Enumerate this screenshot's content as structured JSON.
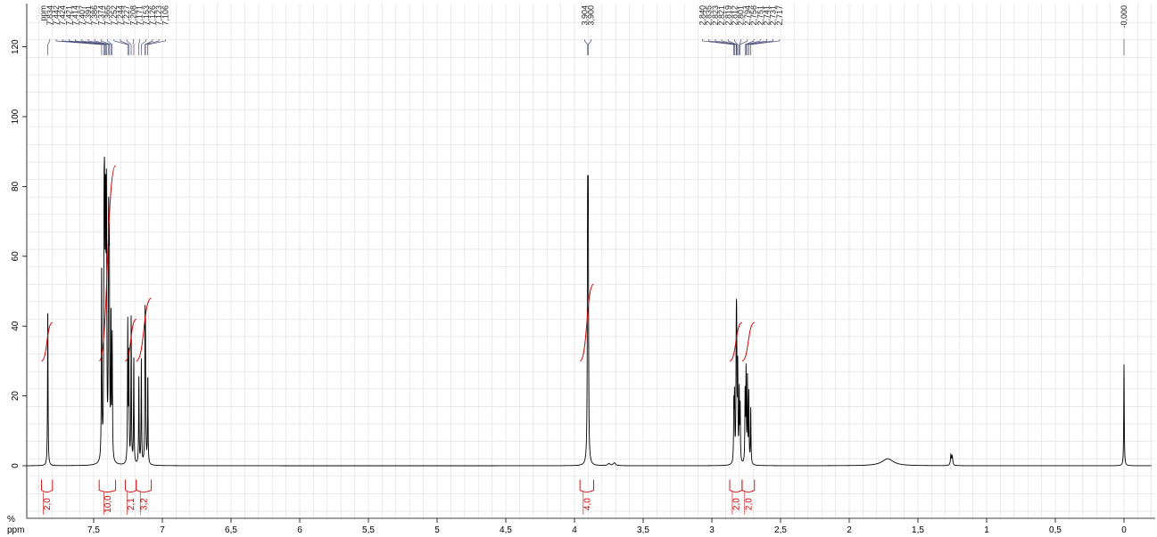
{
  "chart_data": {
    "type": "line",
    "title": "",
    "xlabel": "ppm",
    "ylabel": "%",
    "xlim": [
      8.0,
      -0.2
    ],
    "ylim": [
      -18,
      128
    ],
    "x_ticks": [
      {
        "v": 7.5,
        "label": "7,5"
      },
      {
        "v": 7,
        "label": "7"
      },
      {
        "v": 6.5,
        "label": "6,5"
      },
      {
        "v": 6,
        "label": "6"
      },
      {
        "v": 5.5,
        "label": "5,5"
      },
      {
        "v": 5,
        "label": "5"
      },
      {
        "v": 4.5,
        "label": "4,5"
      },
      {
        "v": 4,
        "label": "4"
      },
      {
        "v": 3.5,
        "label": "3,5"
      },
      {
        "v": 3,
        "label": "3"
      },
      {
        "v": 2.5,
        "label": "2,5"
      },
      {
        "v": 2,
        "label": "2"
      },
      {
        "v": 1.5,
        "label": "1,5"
      },
      {
        "v": 1,
        "label": "1"
      },
      {
        "v": 0.5,
        "label": "0,5"
      },
      {
        "v": 0,
        "label": "0"
      }
    ],
    "y_ticks": [
      {
        "v": 0,
        "label": "0"
      },
      {
        "v": 20,
        "label": "20"
      },
      {
        "v": 40,
        "label": "40"
      },
      {
        "v": 60,
        "label": "60"
      },
      {
        "v": 80,
        "label": "80"
      },
      {
        "v": 100,
        "label": "100"
      },
      {
        "v": 120,
        "label": "120"
      }
    ],
    "grid": true,
    "peaks": [
      {
        "ppm": 7.834,
        "height": 45,
        "label": "7,834"
      },
      {
        "ppm": 7.442,
        "height": 55,
        "label": "7,442"
      },
      {
        "ppm": 7.424,
        "height": 75,
        "label": "7,424"
      },
      {
        "ppm": 7.421,
        "height": 85,
        "label": "7,421"
      },
      {
        "ppm": 7.414,
        "height": 90,
        "label": "7,414"
      },
      {
        "ppm": 7.407,
        "height": 100,
        "label": "7,407"
      },
      {
        "ppm": 7.391,
        "height": 80,
        "label": "7,391"
      },
      {
        "ppm": 7.386,
        "height": 60,
        "label": "7,386"
      },
      {
        "ppm": 7.374,
        "height": 40,
        "label": "7,374"
      },
      {
        "ppm": 7.365,
        "height": 35,
        "label": "7,365"
      },
      {
        "ppm": 7.252,
        "height": 40,
        "label": "7,252"
      },
      {
        "ppm": 7.244,
        "height": 30,
        "label": "7,244"
      },
      {
        "ppm": 7.227,
        "height": 42,
        "label": "7,227"
      },
      {
        "ppm": 7.208,
        "height": 30,
        "label": "7,208"
      },
      {
        "ppm": 7.171,
        "height": 25,
        "label": "7,171"
      },
      {
        "ppm": 7.153,
        "height": 30,
        "label": "7,153"
      },
      {
        "ppm": 7.126,
        "height": 34,
        "label": "7,126"
      },
      {
        "ppm": 7.123,
        "height": 30,
        "label": "7,123"
      },
      {
        "ppm": 7.106,
        "height": 25,
        "label": "7,106"
      },
      {
        "ppm": 3.904,
        "height": 88,
        "label": "3,904"
      },
      {
        "ppm": 3.9,
        "height": 88,
        "label": "3,900"
      },
      {
        "ppm": 2.84,
        "height": 16,
        "label": "2,840"
      },
      {
        "ppm": 2.835,
        "height": 18,
        "label": "2,835"
      },
      {
        "ppm": 2.823,
        "height": 22,
        "label": "2,823"
      },
      {
        "ppm": 2.821,
        "height": 20,
        "label": "2,821"
      },
      {
        "ppm": 2.819,
        "height": 24,
        "label": "2,819"
      },
      {
        "ppm": 2.812,
        "height": 26,
        "label": "2,812"
      },
      {
        "ppm": 2.801,
        "height": 20,
        "label": "2,801"
      },
      {
        "ppm": 2.794,
        "height": 16,
        "label": "2,794"
      },
      {
        "ppm": 2.758,
        "height": 20,
        "label": "2,758"
      },
      {
        "ppm": 2.751,
        "height": 26,
        "label": "2,751"
      },
      {
        "ppm": 2.741,
        "height": 24,
        "label": "2,741"
      },
      {
        "ppm": 2.731,
        "height": 20,
        "label": "2,731"
      },
      {
        "ppm": 2.717,
        "height": 16,
        "label": "2,717"
      },
      {
        "ppm": 0.0,
        "height": 29,
        "label": "-0,000"
      }
    ],
    "minor_peaks": [
      {
        "ppm": 1.72,
        "height": 2,
        "width": 0.05
      },
      {
        "ppm": 1.25,
        "height": 2.5,
        "width": 0.004
      },
      {
        "ppm": 1.26,
        "height": 3,
        "width": 0.004
      },
      {
        "ppm": 3.71,
        "height": 0.8,
        "width": 0.01
      },
      {
        "ppm": 3.75,
        "height": 0.6,
        "width": 0.01
      }
    ],
    "label_groups": [
      {
        "labels": [
          "7,834",
          "7,442",
          "7,424",
          "7,421",
          "7,414",
          "7,407",
          "7,391",
          "7,386",
          "7,374",
          "7,365",
          "7,252",
          "7,244",
          "7,227",
          "7,208",
          "7,171",
          "7,153",
          "7,126",
          "7,123",
          "7,106"
        ],
        "header": "ppm"
      },
      {
        "labels": [
          "3,904",
          "3,900"
        ],
        "header": ""
      },
      {
        "labels": [
          "2,840",
          "2,835",
          "2,823",
          "2,821",
          "2,819",
          "2,812",
          "2,801",
          "2,794",
          "2,758",
          "2,751",
          "2,741",
          "2,731",
          "2,717"
        ],
        "header": ""
      },
      {
        "labels": [
          "-0,000"
        ],
        "header": ""
      }
    ],
    "integrals": [
      {
        "from": 7.88,
        "to": 7.8,
        "value": "2,0",
        "start": 30,
        "end": 41
      },
      {
        "from": 7.46,
        "to": 7.34,
        "value": "10,0",
        "start": 30,
        "end": 86
      },
      {
        "from": 7.27,
        "to": 7.19,
        "value": "2,1",
        "start": 30,
        "end": 42
      },
      {
        "from": 7.19,
        "to": 7.08,
        "value": "3,2",
        "start": 30,
        "end": 48
      },
      {
        "from": 3.96,
        "to": 3.86,
        "value": "4,0",
        "start": 30,
        "end": 52
      },
      {
        "from": 2.87,
        "to": 2.78,
        "value": "2,0",
        "start": 30,
        "end": 41
      },
      {
        "from": 2.78,
        "to": 2.69,
        "value": "2,0",
        "start": 30,
        "end": 41
      }
    ],
    "colors": {
      "spectrum": "#000000",
      "integral": "#cc0000",
      "label_lines": "#4a4f7a",
      "grid": "#dcdcdc"
    }
  }
}
